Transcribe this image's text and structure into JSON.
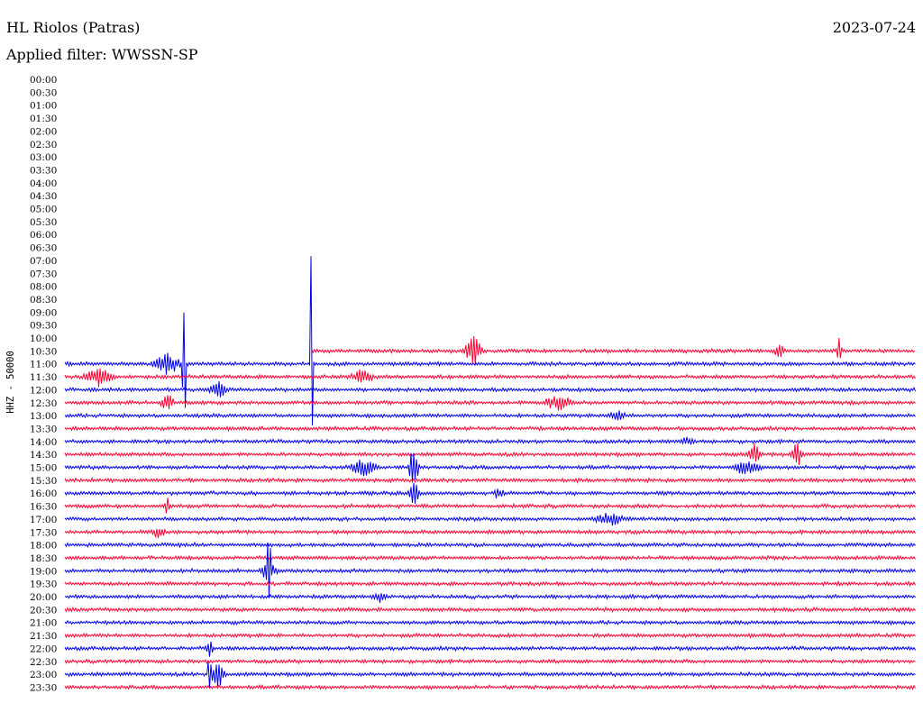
{
  "header": {
    "station": "HL Riolos (Patras)",
    "date": "2023-07-24",
    "filter": "Applied filter: WWSSN-SP"
  },
  "chart_data": {
    "type": "line",
    "subtype": "helicorder",
    "ylabel": "HHZ - 50000",
    "time_labels": [
      "00:00",
      "00:30",
      "01:00",
      "01:30",
      "02:00",
      "02:30",
      "03:00",
      "03:30",
      "04:00",
      "04:30",
      "05:00",
      "05:30",
      "06:00",
      "06:30",
      "07:00",
      "07:30",
      "08:00",
      "08:30",
      "09:00",
      "09:30",
      "10:00",
      "10:30",
      "11:00",
      "11:30",
      "12:00",
      "12:30",
      "13:00",
      "13:30",
      "14:00",
      "14:30",
      "15:00",
      "15:30",
      "16:00",
      "16:30",
      "17:00",
      "17:30",
      "18:00",
      "18:30",
      "19:00",
      "19:30",
      "20:00",
      "20:30",
      "21:00",
      "21:30",
      "22:00",
      "22:30",
      "23:00",
      "23:30"
    ],
    "trace_start_label": "10:30",
    "trace_colors": [
      "#ff0033",
      "#0000ee"
    ],
    "grid": false,
    "events": [
      {
        "row": "10:30",
        "x": 0.48,
        "amp": 18,
        "width": 0.012
      },
      {
        "row": "10:30",
        "x": 0.84,
        "amp": 6,
        "width": 0.01
      },
      {
        "row": "10:30",
        "x": 0.91,
        "amp": 30,
        "width": 0.004
      },
      {
        "row": "11:00",
        "x": 0.12,
        "amp": 12,
        "width": 0.02
      },
      {
        "row": "11:00",
        "x": 0.14,
        "amp": 120,
        "width": 0.003
      },
      {
        "row": "11:00",
        "x": 0.29,
        "amp": 300,
        "width": 0.002
      },
      {
        "row": "11:30",
        "x": 0.04,
        "amp": 10,
        "width": 0.02
      },
      {
        "row": "11:30",
        "x": 0.35,
        "amp": 8,
        "width": 0.015
      },
      {
        "row": "12:00",
        "x": 0.18,
        "amp": 10,
        "width": 0.012
      },
      {
        "row": "12:30",
        "x": 0.12,
        "amp": 10,
        "width": 0.01
      },
      {
        "row": "12:30",
        "x": 0.58,
        "amp": 9,
        "width": 0.02
      },
      {
        "row": "13:00",
        "x": 0.65,
        "amp": 8,
        "width": 0.01
      },
      {
        "row": "14:00",
        "x": 0.73,
        "amp": 5,
        "width": 0.01
      },
      {
        "row": "14:30",
        "x": 0.81,
        "amp": 12,
        "width": 0.01
      },
      {
        "row": "14:30",
        "x": 0.86,
        "amp": 18,
        "width": 0.008
      },
      {
        "row": "15:00",
        "x": 0.35,
        "amp": 10,
        "width": 0.02
      },
      {
        "row": "15:00",
        "x": 0.41,
        "amp": 25,
        "width": 0.008
      },
      {
        "row": "15:00",
        "x": 0.8,
        "amp": 8,
        "width": 0.02
      },
      {
        "row": "16:00",
        "x": 0.41,
        "amp": 15,
        "width": 0.008
      },
      {
        "row": "16:00",
        "x": 0.51,
        "amp": 6,
        "width": 0.008
      },
      {
        "row": "16:30",
        "x": 0.12,
        "amp": 12,
        "width": 0.004
      },
      {
        "row": "17:00",
        "x": 0.64,
        "amp": 8,
        "width": 0.02
      },
      {
        "row": "17:30",
        "x": 0.11,
        "amp": 6,
        "width": 0.01
      },
      {
        "row": "19:00",
        "x": 0.24,
        "amp": 12,
        "width": 0.012
      },
      {
        "row": "19:00",
        "x": 0.24,
        "amp": 55,
        "width": 0.003
      },
      {
        "row": "20:00",
        "x": 0.37,
        "amp": 5,
        "width": 0.01
      },
      {
        "row": "22:00",
        "x": 0.17,
        "amp": 8,
        "width": 0.006
      },
      {
        "row": "23:00",
        "x": 0.18,
        "amp": 18,
        "width": 0.01
      },
      {
        "row": "23:00",
        "x": 0.17,
        "amp": 40,
        "width": 0.003
      }
    ]
  }
}
